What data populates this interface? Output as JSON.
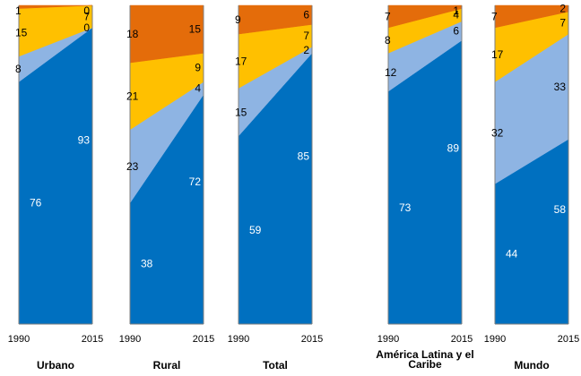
{
  "colors": {
    "dark_blue": "#0070C0",
    "light_blue": "#8EB4E3",
    "yellow": "#FFC000",
    "orange": "#E46C0A"
  },
  "chart_data": {
    "type": "area",
    "x": [
      "1990",
      "2015"
    ],
    "ylim": [
      0,
      100
    ],
    "grid": false,
    "legend": "none",
    "panels": [
      {
        "title": "Urbano",
        "series": [
          {
            "color": "#0070C0",
            "values": [
              76,
              93
            ]
          },
          {
            "color": "#8EB4E3",
            "values": [
              8,
              0
            ]
          },
          {
            "color": "#FFC000",
            "values": [
              15,
              7
            ]
          },
          {
            "color": "#E46C0A",
            "values": [
              1,
              0
            ]
          }
        ]
      },
      {
        "title": "Rural",
        "series": [
          {
            "color": "#0070C0",
            "values": [
              38,
              72
            ]
          },
          {
            "color": "#8EB4E3",
            "values": [
              23,
              4
            ]
          },
          {
            "color": "#FFC000",
            "values": [
              21,
              9
            ]
          },
          {
            "color": "#E46C0A",
            "values": [
              18,
              15
            ]
          }
        ]
      },
      {
        "title": "Total",
        "series": [
          {
            "color": "#0070C0",
            "values": [
              59,
              85
            ]
          },
          {
            "color": "#8EB4E3",
            "values": [
              15,
              2
            ]
          },
          {
            "color": "#FFC000",
            "values": [
              17,
              7
            ]
          },
          {
            "color": "#E46C0A",
            "values": [
              9,
              6
            ]
          }
        ]
      },
      {
        "title": "América Latina y el Caribe",
        "series": [
          {
            "color": "#0070C0",
            "values": [
              73,
              89
            ]
          },
          {
            "color": "#8EB4E3",
            "values": [
              12,
              6
            ]
          },
          {
            "color": "#FFC000",
            "values": [
              8,
              4
            ]
          },
          {
            "color": "#E46C0A",
            "values": [
              7,
              1
            ]
          }
        ]
      },
      {
        "title": "Mundo",
        "series": [
          {
            "color": "#0070C0",
            "values": [
              44,
              58
            ]
          },
          {
            "color": "#8EB4E3",
            "values": [
              32,
              33
            ]
          },
          {
            "color": "#FFC000",
            "values": [
              17,
              7
            ]
          },
          {
            "color": "#E46C0A",
            "values": [
              7,
              2
            ]
          }
        ]
      }
    ]
  }
}
